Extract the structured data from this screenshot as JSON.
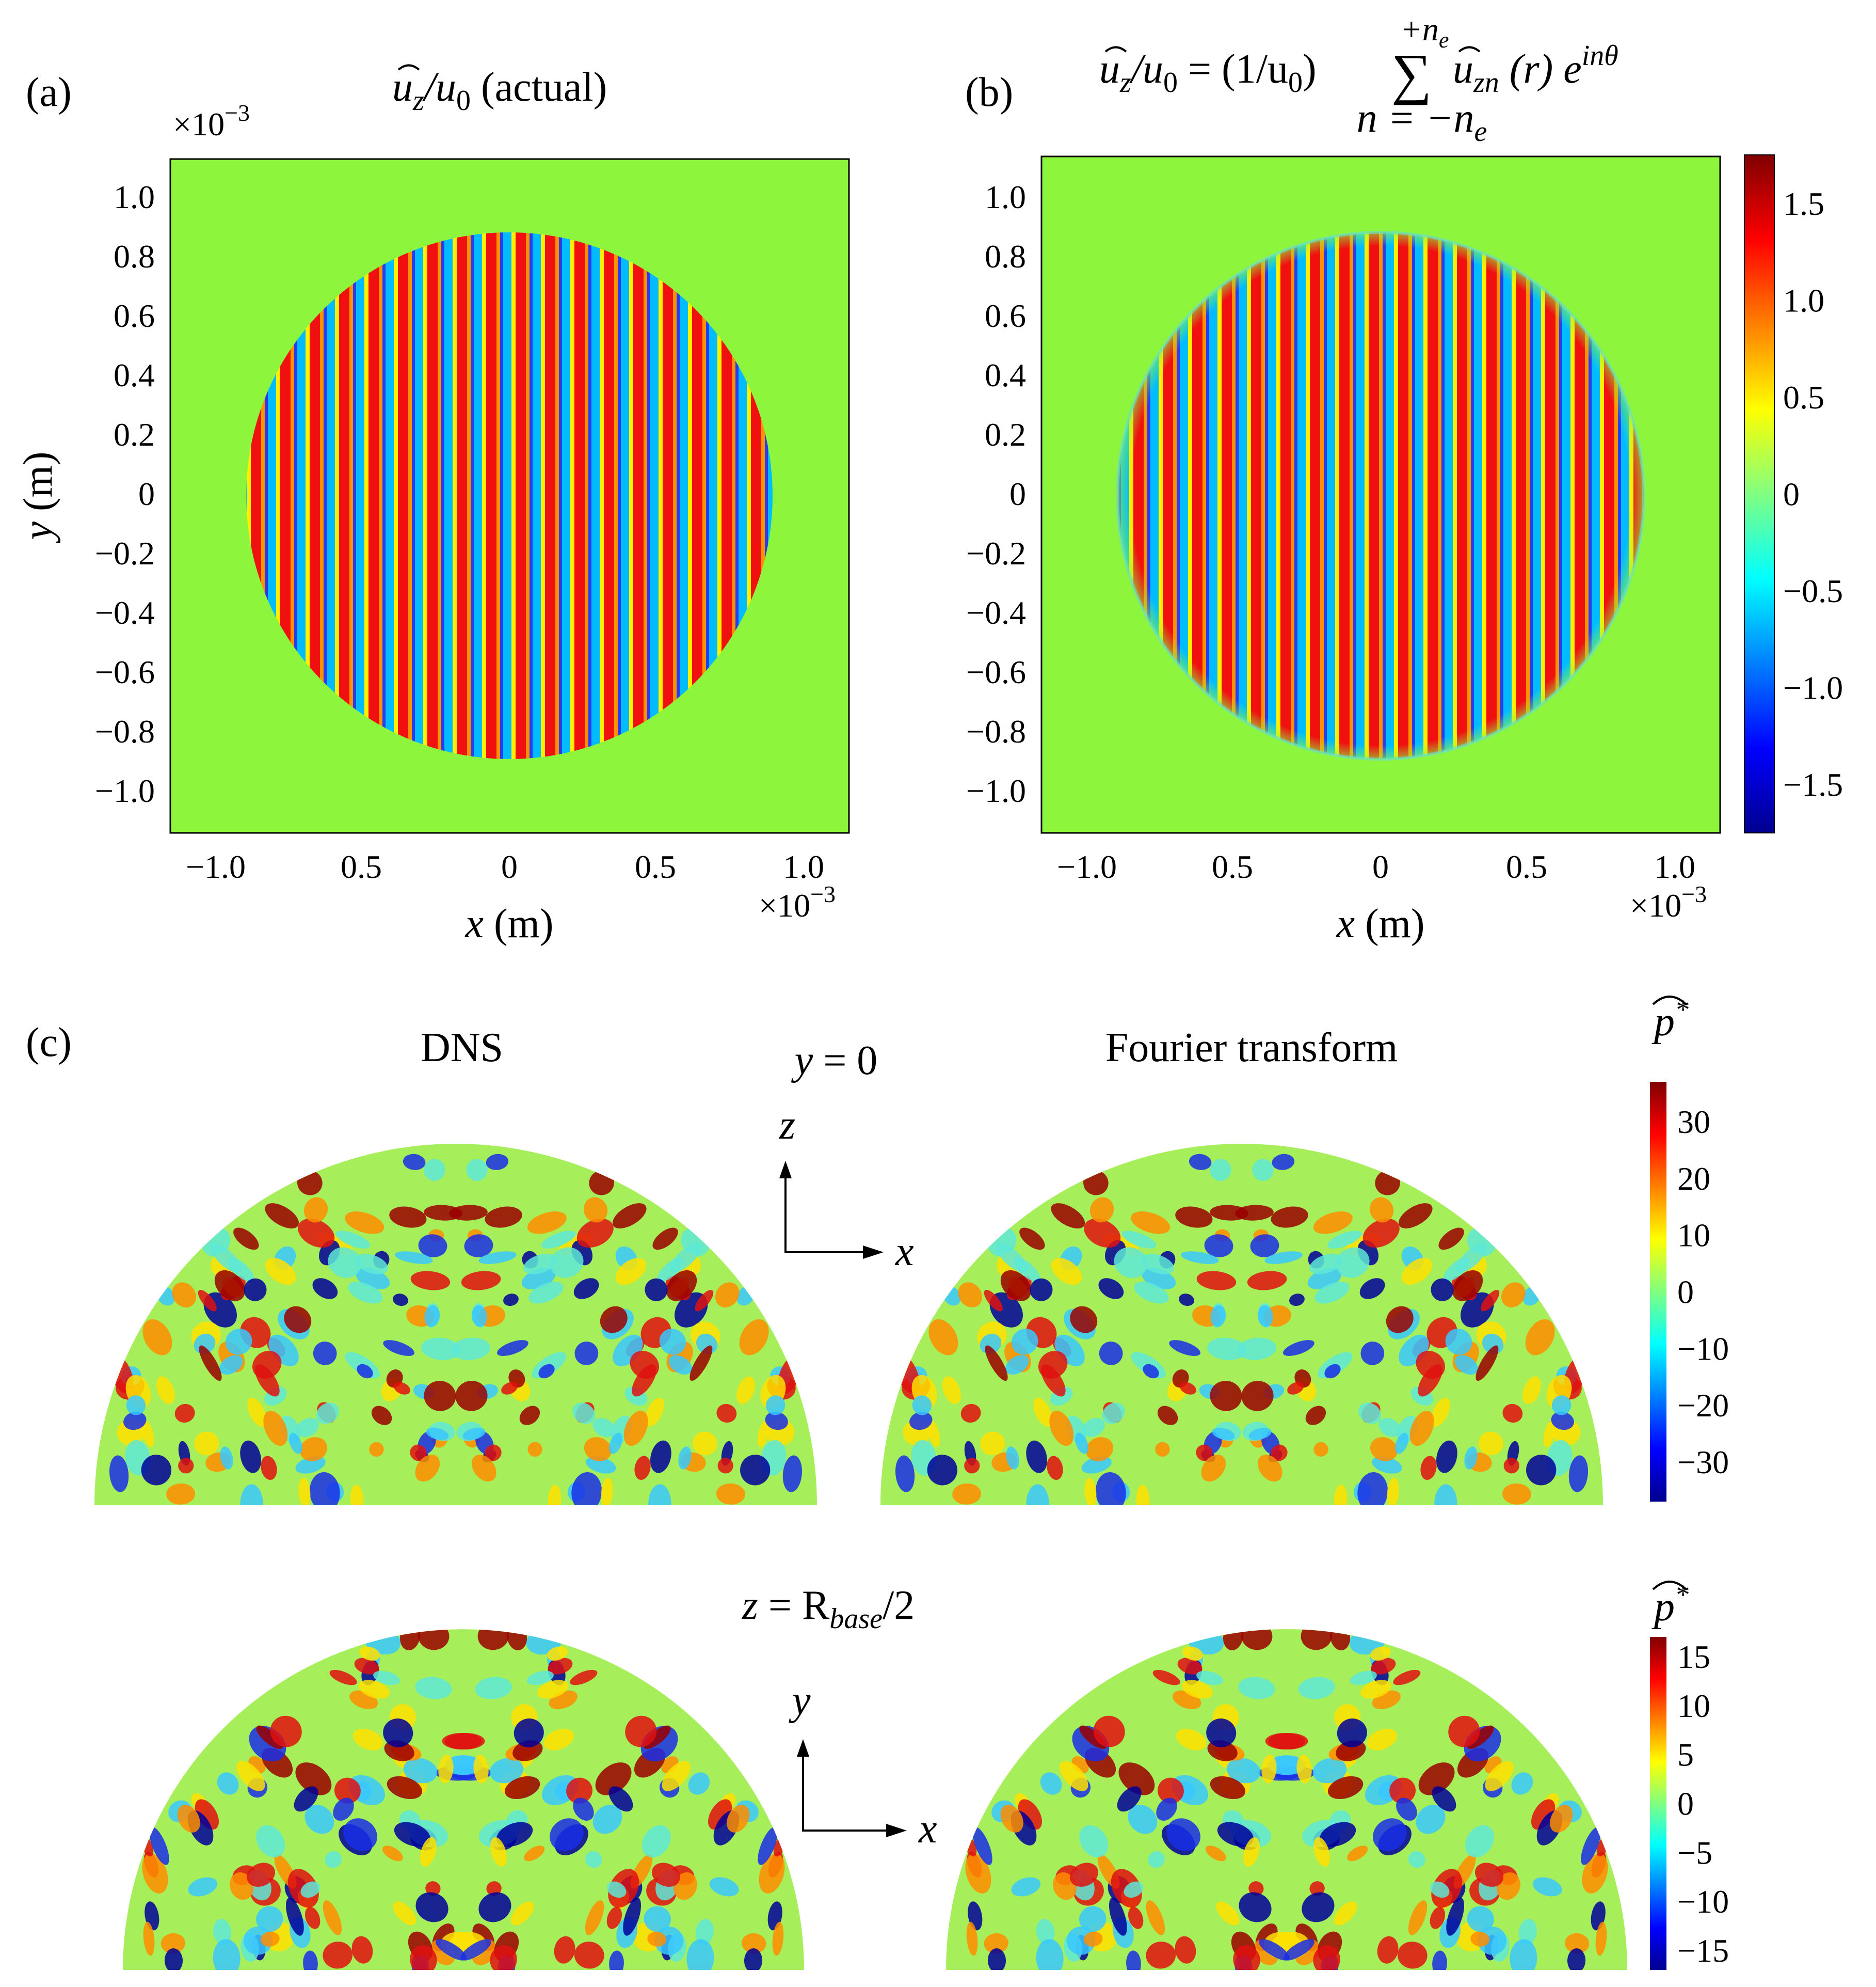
{
  "panel_a": {
    "label": "(a)",
    "title_main": "u",
    "title_sub": "z",
    "title_rest": "/u",
    "title_rest_sub": "0",
    "title_paren": " (actual)",
    "exp_top": "×10",
    "exp_top_pow": "−3",
    "exp_bottom": "×10",
    "exp_bottom_pow": "−3",
    "xlabel_var": "x",
    "xlabel_unit": " (m)",
    "ylabel_var": "y",
    "ylabel_unit": " (m)",
    "xticks": [
      "−1.0",
      "0.5",
      "0",
      "0.5",
      "1.0"
    ],
    "yticks": [
      "1.0",
      "0.8",
      "0.6",
      "0.4",
      "0.2",
      "0",
      "−0.2",
      "−0.4",
      "−0.6",
      "−0.8",
      "−1.0"
    ]
  },
  "panel_b": {
    "label": "(b)",
    "title_main": "u",
    "title_sub": "z",
    "title_rest": "/u",
    "title_rest_sub": "0",
    "title_eq": " = (1/u",
    "title_eq_sub": "0",
    "title_eq_close": ")",
    "sum_symbol": "∑",
    "sum_upper": "+n",
    "sum_upper_sub": "e",
    "sum_lower": "n = −n",
    "sum_lower_sub": "e",
    "term_main": "u",
    "term_sub": "zn",
    "term_arg": " (r) e",
    "term_exp": "inθ",
    "exp_bottom": "×10",
    "exp_bottom_pow": "−3",
    "xlabel_var": "x",
    "xlabel_unit": " (m)",
    "xticks": [
      "−1.0",
      "0.5",
      "0",
      "0.5",
      "1.0"
    ],
    "yticks": [
      "1.0",
      "0.8",
      "0.6",
      "0.4",
      "0.2",
      "0",
      "−0.2",
      "−0.4",
      "−0.6",
      "−0.8",
      "−1.0"
    ],
    "colorbar_ticks": [
      "1.5",
      "1.0",
      "0.5",
      "0",
      "−0.5",
      "−1.0",
      "−1.5"
    ],
    "colorbar_range": [
      -1.75,
      1.75
    ]
  },
  "panel_c": {
    "label": "(c)",
    "col_left": "DNS",
    "col_right": "Fourier transform",
    "row1_plane_var": "y",
    "row1_plane_rest": " = 0",
    "row2_plane_var": "z",
    "row2_plane_eq": " = R",
    "row2_plane_sub": "base",
    "row2_plane_rest": "/2",
    "axes1_v": "z",
    "axes1_h": "x",
    "axes2_v": "y",
    "axes2_h": "x",
    "cbar_label": "p",
    "cbar_label_sup": "*",
    "cbar1_ticks": [
      "30",
      "20",
      "10",
      "0",
      "−10",
      "−20",
      "−30"
    ],
    "cbar1_range": [
      -37,
      37
    ],
    "cbar2_ticks": [
      "15",
      "10",
      "5",
      "0",
      "−5",
      "−10",
      "−15"
    ],
    "cbar2_range": [
      -17,
      17
    ]
  },
  "colors": {
    "background_field": "#8cf53c",
    "red": "#e00000",
    "blue": "#1f3cff",
    "dark_red": "#7a0000",
    "dark_blue": "#00008a",
    "cyan": "#59f0e0",
    "yellow": "#ffe600"
  }
}
